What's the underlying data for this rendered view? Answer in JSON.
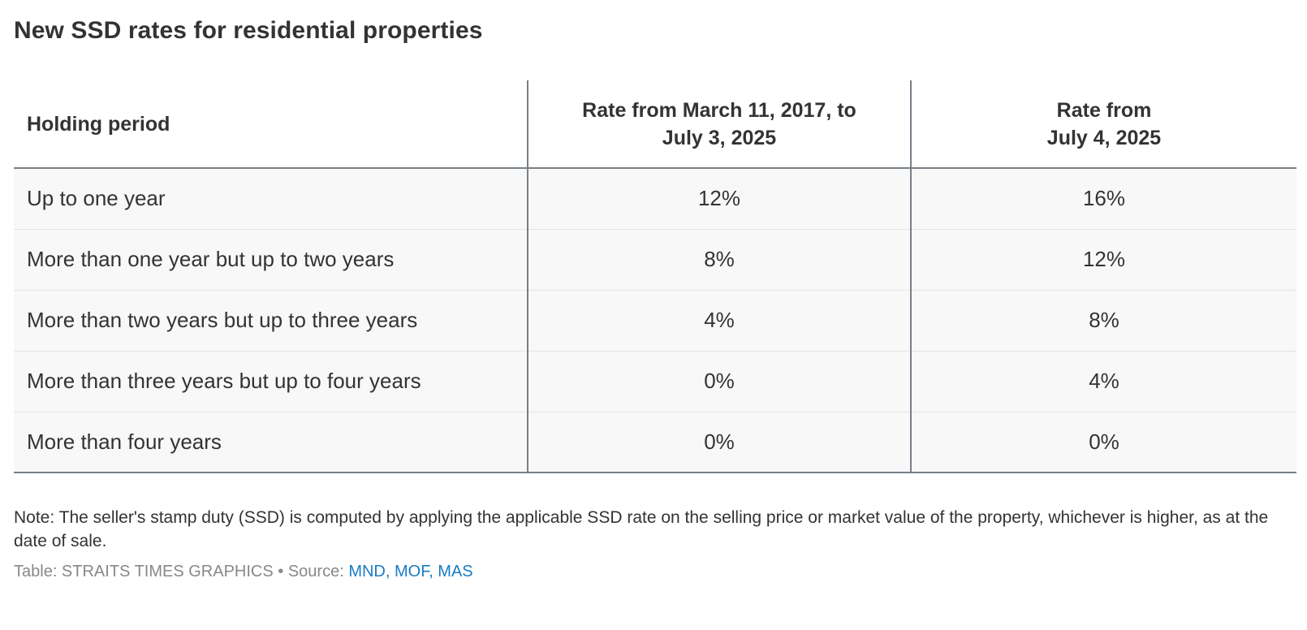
{
  "chart_data": {
    "type": "table",
    "title": "New SSD rates for residential properties",
    "columns": [
      "Holding period",
      "Rate from March 11, 2017, to July 3, 2025",
      "Rate from July 4, 2025"
    ],
    "header": {
      "col1": "Holding period",
      "col2_line1": "Rate from March 11, 2017, to",
      "col2_line2": "July 3, 2025",
      "col3_line1": "Rate from",
      "col3_line2": "July 4, 2025"
    },
    "rows": [
      [
        "Up to one year",
        "12%",
        "16%"
      ],
      [
        "More than one year but up to two years",
        "8%",
        "12%"
      ],
      [
        "More than two years but up to three years",
        "4%",
        "8%"
      ],
      [
        "More than three years but up to four years",
        "0%",
        "4%"
      ],
      [
        "More than four years",
        "0%",
        "0%"
      ]
    ],
    "note": "Note: The seller's stamp duty (SSD) is computed by applying the applicable SSD rate on the selling price or market value of the property, whichever is higher, as at the date of sale.",
    "source_prefix": "Table: STRAITS TIMES GRAPHICS • Source: ",
    "source_links": "MND, MOF, MAS"
  },
  "colors": {
    "text": "#333333",
    "row_background": "#f8f8f8",
    "rule": "#777f87",
    "muted": "#888888",
    "link": "#1a7cc4"
  }
}
